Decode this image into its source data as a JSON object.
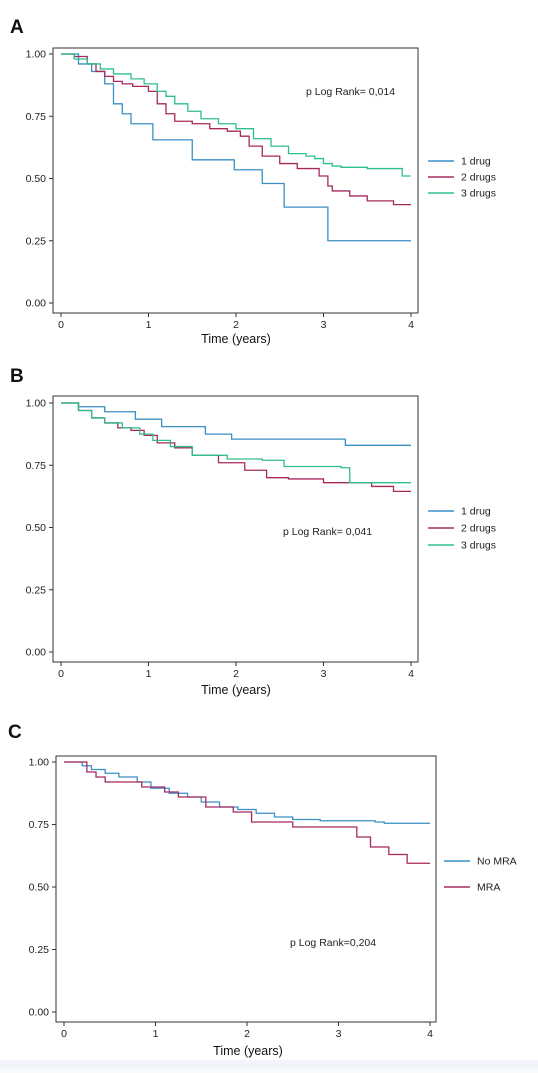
{
  "colors": {
    "one_drug": "#3a8fc7",
    "two_drugs": "#a8285e",
    "three_drugs": "#2dbf8a",
    "no_mra": "#3a8fc7",
    "mra": "#a8285e"
  },
  "chart_data": [
    {
      "panel": "A",
      "type": "line",
      "step": true,
      "annotation": "p Log Rank= 0,014",
      "xlabel": "Time (years)",
      "ylabel": "",
      "xlim": [
        0,
        4
      ],
      "ylim": [
        0,
        1
      ],
      "xticks": [
        "0",
        "1",
        "2",
        "3",
        "4"
      ],
      "yticks": [
        "0.00",
        "0.25",
        "0.50",
        "0.75",
        "1.00"
      ],
      "legend_position": "right",
      "series": [
        {
          "name": "1 drug",
          "color": "#3a8fc7",
          "x": [
            0,
            0.2,
            0.35,
            0.5,
            0.6,
            0.7,
            0.8,
            1.05,
            1.5,
            1.98,
            2.3,
            2.55,
            3.05,
            4.0
          ],
          "y": [
            1.0,
            0.96,
            0.93,
            0.88,
            0.8,
            0.76,
            0.72,
            0.655,
            0.575,
            0.535,
            0.48,
            0.385,
            0.25,
            0.25
          ]
        },
        {
          "name": "2 drugs",
          "color": "#a8285e",
          "x": [
            0,
            0.15,
            0.3,
            0.4,
            0.5,
            0.6,
            0.7,
            0.82,
            1.0,
            1.1,
            1.2,
            1.3,
            1.5,
            1.7,
            1.9,
            2.05,
            2.15,
            2.3,
            2.5,
            2.7,
            2.95,
            3.05,
            3.1,
            3.3,
            3.5,
            3.8,
            4.0
          ],
          "y": [
            1.0,
            0.99,
            0.96,
            0.93,
            0.91,
            0.89,
            0.88,
            0.87,
            0.85,
            0.8,
            0.76,
            0.73,
            0.72,
            0.7,
            0.69,
            0.67,
            0.63,
            0.59,
            0.56,
            0.54,
            0.51,
            0.47,
            0.45,
            0.43,
            0.41,
            0.395,
            0.395
          ]
        },
        {
          "name": "3 drugs",
          "color": "#2dbf8a",
          "x": [
            0,
            0.15,
            0.3,
            0.45,
            0.6,
            0.8,
            0.95,
            1.1,
            1.2,
            1.3,
            1.45,
            1.6,
            1.8,
            2.0,
            2.2,
            2.4,
            2.6,
            2.8,
            2.9,
            3.0,
            3.1,
            3.2,
            3.5,
            3.9,
            4.0
          ],
          "y": [
            1.0,
            0.98,
            0.96,
            0.94,
            0.92,
            0.9,
            0.88,
            0.85,
            0.83,
            0.8,
            0.77,
            0.74,
            0.72,
            0.7,
            0.66,
            0.63,
            0.6,
            0.59,
            0.58,
            0.56,
            0.55,
            0.545,
            0.54,
            0.51,
            0.51
          ]
        }
      ]
    },
    {
      "panel": "B",
      "type": "line",
      "step": true,
      "annotation": "p Log Rank= 0,041",
      "xlabel": "Time (years)",
      "ylabel": "",
      "xlim": [
        0,
        4
      ],
      "ylim": [
        0,
        1
      ],
      "xticks": [
        "0",
        "1",
        "2",
        "3",
        "4"
      ],
      "yticks": [
        "0.00",
        "0.25",
        "0.50",
        "0.75",
        "1.00"
      ],
      "legend_position": "right",
      "series": [
        {
          "name": "1 drug",
          "color": "#3a8fc7",
          "x": [
            0,
            0.2,
            0.5,
            0.85,
            1.15,
            1.65,
            1.95,
            3.25,
            4.0
          ],
          "y": [
            1.0,
            0.985,
            0.965,
            0.935,
            0.905,
            0.875,
            0.855,
            0.83,
            0.83
          ]
        },
        {
          "name": "2 drugs",
          "color": "#a8285e",
          "x": [
            0,
            0.2,
            0.35,
            0.5,
            0.65,
            0.8,
            0.95,
            1.1,
            1.3,
            1.5,
            1.8,
            2.1,
            2.35,
            2.6,
            3.0,
            3.55,
            3.8,
            4.0
          ],
          "y": [
            1.0,
            0.97,
            0.94,
            0.92,
            0.9,
            0.89,
            0.87,
            0.84,
            0.82,
            0.79,
            0.76,
            0.73,
            0.7,
            0.695,
            0.68,
            0.665,
            0.645,
            0.645
          ]
        },
        {
          "name": "3 drugs",
          "color": "#2dbf8a",
          "x": [
            0,
            0.2,
            0.35,
            0.5,
            0.7,
            0.9,
            1.05,
            1.25,
            1.5,
            1.9,
            2.3,
            2.55,
            3.2,
            3.3,
            4.0
          ],
          "y": [
            1.0,
            0.97,
            0.94,
            0.92,
            0.9,
            0.875,
            0.85,
            0.825,
            0.79,
            0.775,
            0.77,
            0.745,
            0.74,
            0.68,
            0.68
          ]
        }
      ]
    },
    {
      "panel": "C",
      "type": "line",
      "step": true,
      "annotation": "p Log Rank=0,204",
      "xlabel": "Time (years)",
      "ylabel": "",
      "xlim": [
        0,
        4
      ],
      "ylim": [
        0,
        1
      ],
      "xticks": [
        "0",
        "1",
        "2",
        "3",
        "4"
      ],
      "yticks": [
        "0.00",
        "0.25",
        "0.50",
        "0.75",
        "1.00"
      ],
      "legend_position": "right",
      "series": [
        {
          "name": "No MRA",
          "color": "#3a8fc7",
          "x": [
            0,
            0.2,
            0.3,
            0.45,
            0.6,
            0.8,
            0.95,
            1.15,
            1.35,
            1.5,
            1.7,
            1.9,
            2.1,
            2.3,
            2.5,
            2.8,
            3.1,
            3.4,
            3.5,
            4.0
          ],
          "y": [
            1.0,
            0.985,
            0.97,
            0.955,
            0.94,
            0.92,
            0.895,
            0.875,
            0.86,
            0.84,
            0.82,
            0.81,
            0.795,
            0.78,
            0.77,
            0.765,
            0.765,
            0.76,
            0.755,
            0.755
          ]
        },
        {
          "name": "MRA",
          "color": "#a8285e",
          "x": [
            0,
            0.25,
            0.35,
            0.45,
            0.85,
            1.1,
            1.25,
            1.55,
            1.85,
            2.05,
            2.5,
            3.2,
            3.35,
            3.55,
            3.75,
            4.0
          ],
          "y": [
            1.0,
            0.96,
            0.94,
            0.92,
            0.9,
            0.88,
            0.86,
            0.82,
            0.8,
            0.76,
            0.74,
            0.7,
            0.66,
            0.63,
            0.595,
            0.595
          ]
        }
      ]
    }
  ]
}
